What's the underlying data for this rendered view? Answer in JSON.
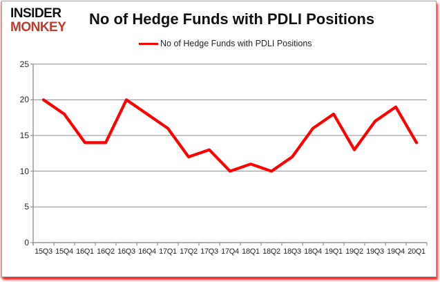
{
  "logo": {
    "line1": "INSIDER",
    "line2": "MONKEY"
  },
  "colors": {
    "line": "#ff0000",
    "logo_black": "#111111",
    "logo_red": "#c0392b",
    "gridline": "#8c8c8c",
    "axis": "#808080",
    "text": "#262626",
    "frame_shadow_red": "#ff0000"
  },
  "chart_data": {
    "type": "line",
    "title": "No of Hedge Funds with PDLI Positions",
    "categories": [
      "15Q3",
      "15Q4",
      "16Q1",
      "16Q2",
      "16Q3",
      "16Q4",
      "17Q1",
      "17Q2",
      "17Q3",
      "17Q4",
      "18Q1",
      "18Q2",
      "18Q3",
      "18Q4",
      "19Q1",
      "19Q2",
      "19Q3",
      "19Q4",
      "20Q1"
    ],
    "series": [
      {
        "name": "No of Hedge Funds with PDLI Positions",
        "values": [
          20,
          18,
          14,
          14,
          20,
          18,
          16,
          12,
          13,
          10,
          11,
          10,
          12,
          16,
          18,
          13,
          17,
          19,
          14
        ]
      }
    ],
    "xlabel": "",
    "ylabel": "",
    "ylim": [
      0,
      25
    ],
    "yticks": [
      0,
      5,
      10,
      15,
      20,
      25
    ],
    "grid": true,
    "legend_position": "top-center"
  }
}
